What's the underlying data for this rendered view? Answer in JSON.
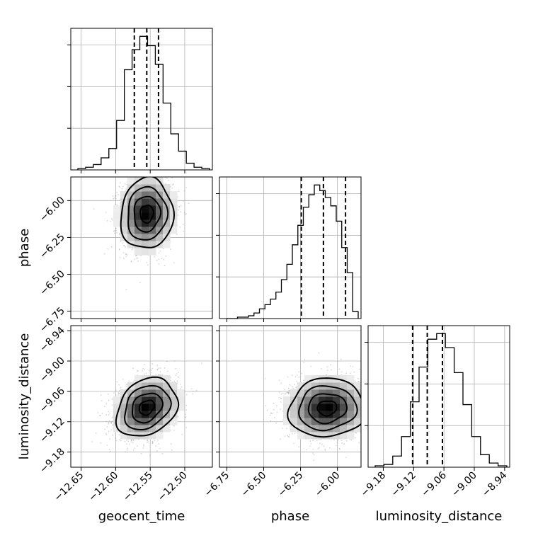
{
  "chart_data": {
    "type": "corner",
    "grid": true,
    "parameters": [
      {
        "name": "geocent_time",
        "xlabel": "geocent_time",
        "range": [
          -12.665,
          -12.46
        ],
        "ticks": [
          -12.65,
          -12.6,
          -12.55,
          -12.5
        ],
        "tick_labels": [
          "−12.65",
          "−12.60",
          "−12.55",
          "−12.50"
        ],
        "quantiles": [
          -12.573,
          -12.555,
          -12.538
        ],
        "hist_counts": [
          1,
          2,
          4,
          9,
          16,
          37,
          75,
          90,
          100,
          93,
          79,
          50,
          27,
          14,
          5,
          2,
          1
        ]
      },
      {
        "name": "phase",
        "xlabel": "phase",
        "ylabel": "phase",
        "range": [
          -6.8,
          -5.84
        ],
        "ticks": [
          -6.75,
          -6.5,
          -6.25,
          -6.0
        ],
        "tick_labels": [
          "−6.75",
          "−6.50",
          "−6.25",
          "−6.00"
        ],
        "quantiles": [
          -6.245,
          -6.095,
          -5.945
        ],
        "hist_counts": [
          0,
          0,
          1,
          1,
          2,
          4,
          7,
          10,
          14,
          19,
          28,
          39,
          53,
          67,
          80,
          89,
          96,
          92,
          87,
          81,
          70,
          51,
          33,
          5
        ]
      },
      {
        "name": "luminosity_distance",
        "xlabel": "luminosity_distance",
        "ylabel": "luminosity_distance",
        "range": [
          -9.21,
          -8.93
        ],
        "ticks": [
          -9.18,
          -9.12,
          -9.06,
          -9.0,
          -8.94
        ],
        "tick_labels": [
          "−9.18",
          "−9.12",
          "−9.06",
          "−9.00",
          "−8.94"
        ],
        "quantiles": [
          -9.122,
          -9.093,
          -9.063
        ],
        "hist_counts": [
          1,
          2,
          8,
          22,
          47,
          72,
          92,
          96,
          86,
          68,
          45,
          22,
          9,
          3,
          1
        ]
      }
    ],
    "hist2d": [
      {
        "x": "geocent_time",
        "y": "phase",
        "mean": [
          -12.555,
          -6.09
        ],
        "sd": [
          0.019,
          0.12
        ],
        "rho": 0.05
      },
      {
        "x": "geocent_time",
        "y": "luminosity_distance",
        "mean": [
          -12.555,
          -9.092
        ],
        "sd": [
          0.022,
          0.029
        ],
        "rho": 0.25
      },
      {
        "x": "phase",
        "y": "luminosity_distance",
        "mean": [
          -6.07,
          -9.093
        ],
        "sd": [
          0.13,
          0.029
        ],
        "rho": 0.05
      }
    ],
    "contour_levels_sigma": [
      0.5,
      1.0,
      1.5,
      2.0
    ]
  }
}
